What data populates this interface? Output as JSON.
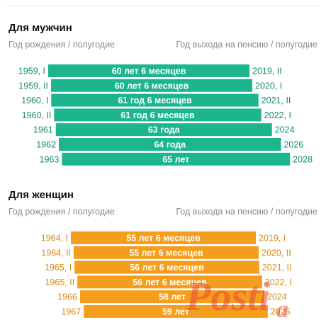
{
  "colors": {
    "men": "#1db58d",
    "women": "#f59d1c",
    "men_year": "#1a8a6f",
    "women_year": "#d98a10",
    "header_text": "#8a8a8a"
  },
  "headers": {
    "birth": "Год рождения / полугодие",
    "retirement": "Год выхода на пенсию / полугодие"
  },
  "chart_data": [
    {
      "type": "bar",
      "title": "Для мужчин",
      "categories": [
        "1959, I",
        "1959, II",
        "1960, I",
        "1960, II",
        "1961",
        "1962",
        "1963"
      ],
      "retirement": [
        "2019, II",
        "2020, I",
        "2021, II",
        "2022, I",
        "2024",
        "2026",
        "2028"
      ],
      "labels": [
        "60 лет 6 месяцев",
        "60 лет 6 месяцев",
        "61 год 6 месяцев",
        "61 год 6 месяцев",
        "63 года",
        "64 года",
        "65 лет"
      ],
      "values": [
        60.5,
        60.5,
        61.5,
        61.5,
        63,
        64,
        65
      ],
      "unit": "years"
    },
    {
      "type": "bar",
      "title": "Для женщин",
      "categories": [
        "1964, I",
        "1964, II",
        "1965, I",
        "1965, II",
        "1966",
        "1967"
      ],
      "retirement": [
        "2019, I",
        "2020, II",
        "2021, II",
        "2022, I",
        "2024",
        "2026"
      ],
      "labels": [
        "55 лет 6 месяцев",
        "55 лет 6 месяцев",
        "56 лет 6 месяцев",
        "56 лет 6 месяцев",
        "58 лет",
        "59 лет"
      ],
      "values": [
        55.5,
        55.5,
        56.5,
        56.5,
        58,
        59
      ],
      "unit": "years"
    }
  ]
}
